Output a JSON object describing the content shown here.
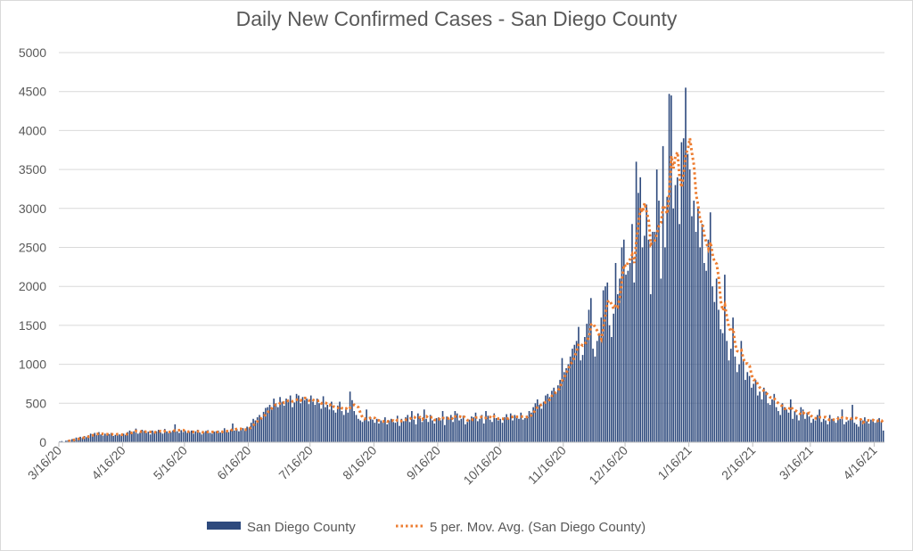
{
  "chart_data": {
    "type": "bar",
    "title": "Daily New Confirmed Cases - San Diego County",
    "xlabel": "",
    "ylabel": "",
    "ylim": [
      0,
      5000
    ],
    "yticks": [
      "0",
      "500",
      "1000",
      "1500",
      "2000",
      "2500",
      "3000",
      "3500",
      "4000",
      "4500",
      "5000"
    ],
    "xticks": [
      "3/16/20",
      "4/16/20",
      "5/16/20",
      "6/16/20",
      "7/16/20",
      "8/16/20",
      "9/16/20",
      "10/16/20",
      "11/16/20",
      "12/16/20",
      "1/16/21",
      "2/16/21",
      "3/16/21",
      "4/16/21"
    ],
    "grid": true,
    "legend_position": "bottom",
    "first_date": "3/16/20",
    "series": [
      {
        "name": "San Diego County",
        "type": "bar",
        "color": "#2E4A7D",
        "values": [
          10,
          15,
          5,
          20,
          25,
          30,
          40,
          35,
          60,
          45,
          70,
          55,
          80,
          65,
          90,
          110,
          100,
          120,
          95,
          130,
          100,
          85,
          110,
          90,
          105,
          120,
          80,
          95,
          115,
          100,
          90,
          110,
          95,
          130,
          150,
          120,
          140,
          175,
          110,
          125,
          160,
          145,
          120,
          135,
          100,
          150,
          130,
          140,
          160,
          125,
          110,
          170,
          140,
          115,
          130,
          150,
          230,
          140,
          120,
          155,
          130,
          145,
          120,
          135,
          150,
          110,
          140,
          160,
          125,
          100,
          130,
          145,
          155,
          120,
          110,
          135,
          140,
          150,
          125,
          120,
          180,
          140,
          130,
          160,
          240,
          150,
          170,
          140,
          160,
          180,
          150,
          200,
          190,
          250,
          300,
          280,
          320,
          350,
          300,
          390,
          440,
          450,
          480,
          420,
          560,
          500,
          450,
          580,
          520,
          470,
          560,
          540,
          600,
          450,
          510,
          620,
          600,
          500,
          580,
          540,
          560,
          490,
          600,
          520,
          480,
          560,
          500,
          430,
          590,
          450,
          480,
          420,
          520,
          410,
          380,
          470,
          520,
          400,
          350,
          430,
          380,
          650,
          540,
          400,
          350,
          300,
          280,
          260,
          300,
          420,
          270,
          320,
          290,
          250,
          300,
          240,
          280,
          260,
          320,
          230,
          280,
          300,
          260,
          250,
          340,
          210,
          300,
          270,
          320,
          350,
          260,
          400,
          290,
          230,
          370,
          310,
          260,
          420,
          300,
          260,
          350,
          280,
          240,
          310,
          320,
          280,
          400,
          220,
          330,
          300,
          350,
          260,
          400,
          370,
          280,
          300,
          340,
          230,
          260,
          290,
          330,
          320,
          380,
          270,
          300,
          350,
          240,
          400,
          340,
          290,
          260,
          370,
          310,
          280,
          300,
          250,
          320,
          360,
          300,
          370,
          280,
          350,
          330,
          300,
          380,
          290,
          310,
          340,
          400,
          380,
          450,
          500,
          550,
          480,
          430,
          520,
          600,
          620,
          580,
          660,
          700,
          640,
          730,
          800,
          1080,
          900,
          950,
          1000,
          1100,
          1200,
          1250,
          1300,
          1480,
          1050,
          1120,
          1350,
          1520,
          1700,
          1850,
          1200,
          1100,
          1300,
          1400,
          1600,
          1950,
          2000,
          2050,
          1500,
          1350,
          1650,
          2300,
          1900,
          2100,
          2500,
          2600,
          2150,
          2200,
          2300,
          2800,
          2050,
          3600,
          3200,
          3400,
          2500,
          2650,
          3050,
          2600,
          1900,
          2700,
          2700,
          3500,
          3100,
          2100,
          3800,
          2500,
          3150,
          4470,
          4450,
          3000,
          3300,
          3400,
          2800,
          3850,
          3900,
          4550,
          3700,
          3500,
          2900,
          3100,
          2700,
          3000,
          2500,
          2800,
          2300,
          2200,
          2600,
          2950,
          2000,
          1800,
          2100,
          1700,
          1450,
          1400,
          2150,
          1300,
          1050,
          1200,
          1600,
          1100,
          900,
          1000,
          1300,
          1050,
          800,
          900,
          850,
          700,
          750,
          800,
          600,
          650,
          550,
          700,
          650,
          500,
          480,
          550,
          620,
          450,
          400,
          350,
          500,
          450,
          420,
          380,
          550,
          300,
          400,
          350,
          280,
          450,
          420,
          300,
          380,
          330,
          250,
          300,
          280,
          350,
          420,
          260,
          300,
          280,
          230,
          350,
          300,
          280,
          250,
          330,
          300,
          420,
          230,
          260,
          280,
          300,
          480,
          250,
          230,
          200,
          300,
          280,
          320,
          270,
          240,
          290,
          300,
          250,
          280,
          310,
          260,
          150
        ]
      },
      {
        "name": "5 per. Mov. Avg. (San Diego County)",
        "type": "line",
        "style": "dotted",
        "period": 5,
        "color": "#ED7D31"
      }
    ]
  }
}
